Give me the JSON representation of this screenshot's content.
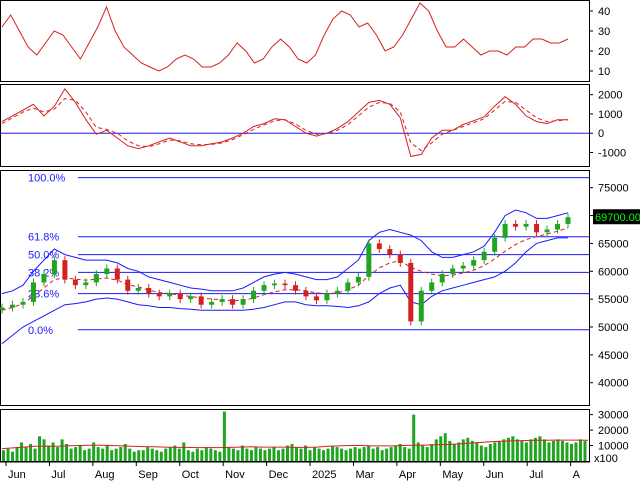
{
  "colors": {
    "background": "#ffffff",
    "panel_border": "#000000",
    "rsi_line": "#d62020",
    "macd_line": "#d62020",
    "macd_signal": "#d62020",
    "zero_line": "#1a1aff",
    "fib_line": "#1a1aff",
    "bollinger": "#1a1aff",
    "ma_line": "#d62020",
    "candle_up": "#1fa51f",
    "candle_down": "#d62020",
    "volume_bar": "#1fa51f",
    "volume_ma": "#d62020",
    "price_tag_bg": "#000000",
    "price_tag_fg": "#00ff00"
  },
  "chart_data": [
    {
      "type": "line",
      "panel": "rsi",
      "y_ticks": [
        "40",
        "30",
        "20",
        "10"
      ],
      "y_values": [
        40,
        30,
        20,
        10
      ],
      "ylim": [
        5,
        45
      ],
      "series": [
        {
          "role": "rsi",
          "values": [
            32,
            38,
            30,
            22,
            18,
            24,
            30,
            28,
            22,
            16,
            24,
            32,
            42,
            30,
            22,
            18,
            14,
            12,
            10,
            12,
            16,
            18,
            16,
            12,
            12,
            14,
            18,
            24,
            20,
            14,
            16,
            22,
            26,
            22,
            16,
            14,
            18,
            28,
            36,
            40,
            38,
            32,
            34,
            28,
            20,
            22,
            28,
            36,
            44,
            40,
            30,
            22,
            22,
            26,
            22,
            18,
            20,
            20,
            18,
            22,
            22,
            26,
            26,
            24,
            24,
            26
          ]
        }
      ]
    },
    {
      "type": "line",
      "panel": "macd",
      "y_ticks": [
        "2000",
        "1000",
        "0",
        "-1000"
      ],
      "y_values": [
        2000,
        1000,
        0,
        -1000
      ],
      "ylim": [
        -1700,
        2500
      ],
      "series": [
        {
          "role": "macd",
          "values": [
            600,
            900,
            1200,
            1500,
            900,
            1400,
            2300,
            1600,
            700,
            -50,
            150,
            -250,
            -650,
            -800,
            -650,
            -450,
            -250,
            -450,
            -650,
            -650,
            -550,
            -450,
            -250,
            0,
            350,
            500,
            750,
            700,
            350,
            0,
            -150,
            0,
            250,
            600,
            1100,
            1600,
            1700,
            1500,
            800,
            -1200,
            -1100,
            -250,
            150,
            150,
            450,
            650,
            850,
            1400,
            1900,
            1500,
            900,
            600,
            500,
            700,
            700
          ]
        },
        {
          "role": "signal",
          "values": [
            500,
            800,
            1100,
            1300,
            1100,
            1250,
            1800,
            1700,
            1100,
            300,
            200,
            0,
            -400,
            -650,
            -700,
            -550,
            -350,
            -400,
            -550,
            -600,
            -580,
            -500,
            -330,
            -80,
            200,
            430,
            650,
            700,
            480,
            150,
            -50,
            -20,
            150,
            450,
            900,
            1350,
            1600,
            1550,
            1100,
            -500,
            -900,
            -500,
            -50,
            150,
            350,
            550,
            750,
            1200,
            1650,
            1600,
            1200,
            800,
            600,
            650,
            700
          ]
        }
      ]
    },
    {
      "type": "line",
      "panel": "price",
      "x_labels": [
        "Jun",
        "Jul",
        "Aug",
        "Sep",
        "Oct",
        "Nov",
        "Dec",
        "2025",
        "Mar",
        "Apr",
        "May",
        "Jun",
        "Jul",
        "A"
      ],
      "y_ticks": [
        "75000",
        "70000",
        "65000",
        "60000",
        "55000",
        "50000",
        "45000",
        "40000"
      ],
      "y_values": [
        75000,
        70000,
        65000,
        60000,
        55000,
        50000,
        45000,
        40000
      ],
      "ylim": [
        36000,
        78000
      ],
      "fib_levels": [
        {
          "label": "100.0%",
          "value": 76800
        },
        {
          "label": "61.8%",
          "value": 66200
        },
        {
          "label": "50.0%",
          "value": 63000
        },
        {
          "label": "38.2%",
          "value": 59800
        },
        {
          "label": "23.6%",
          "value": 56000
        },
        {
          "label": "0.0%",
          "value": 49500
        }
      ],
      "last_price_label": "69700.00",
      "last_price": 69700,
      "series": [
        {
          "role": "close",
          "values": [
            53500,
            54000,
            54500,
            58000,
            59500,
            62000,
            58500,
            57500,
            58000,
            59500,
            60500,
            58500,
            56500,
            57000,
            56000,
            55500,
            56000,
            55000,
            55500,
            54000,
            54500,
            55000,
            54000,
            55000,
            56500,
            57500,
            57800,
            57500,
            56500,
            55500,
            54800,
            56000,
            56500,
            58000,
            59000,
            65000,
            64000,
            63000,
            61500,
            51000,
            56500,
            58000,
            59500,
            60500,
            61000,
            62000,
            63500,
            66000,
            68500,
            68000,
            68500,
            67000,
            67500,
            68500,
            69700
          ]
        },
        {
          "role": "ma",
          "values": [
            53000,
            53500,
            54200,
            55500,
            57000,
            58500,
            58800,
            58600,
            58400,
            58600,
            58800,
            58400,
            57600,
            57200,
            56600,
            56200,
            56000,
            55700,
            55500,
            55200,
            55000,
            54900,
            54700,
            54800,
            55200,
            55800,
            56300,
            56700,
            56700,
            56500,
            56100,
            56000,
            56100,
            56700,
            57500,
            59200,
            60600,
            61500,
            61900,
            60700,
            60000,
            59500,
            59200,
            59300,
            59700,
            60200,
            61000,
            62200,
            63600,
            64800,
            65700,
            66200,
            66700,
            67200,
            67800
          ]
        },
        {
          "role": "bb_upper",
          "values": [
            56000,
            56500,
            57500,
            60000,
            62000,
            64000,
            63000,
            62500,
            62000,
            62000,
            62000,
            61500,
            60500,
            60000,
            59000,
            58500,
            58000,
            57500,
            57000,
            56800,
            56500,
            56500,
            56500,
            57000,
            58000,
            59000,
            59500,
            59800,
            59500,
            59000,
            58500,
            58500,
            59000,
            60500,
            62000,
            65500,
            67000,
            67500,
            67000,
            66500,
            65500,
            63500,
            62500,
            62500,
            63000,
            63500,
            64500,
            67000,
            70000,
            71000,
            70500,
            69500,
            69500,
            70000,
            70500
          ]
        },
        {
          "role": "bb_lower",
          "values": [
            47000,
            48500,
            50000,
            51000,
            52000,
            53000,
            54000,
            54200,
            54500,
            55000,
            55200,
            55000,
            54500,
            54000,
            53800,
            53500,
            53500,
            53300,
            53200,
            53000,
            53000,
            53000,
            53000,
            53000,
            53200,
            53500,
            54000,
            54500,
            54500,
            54000,
            53800,
            53800,
            53700,
            53500,
            53800,
            54500,
            56000,
            57000,
            57500,
            54500,
            54000,
            55500,
            56500,
            57000,
            57500,
            58000,
            58500,
            59000,
            60000,
            61500,
            63500,
            65000,
            65500,
            66000,
            66000
          ]
        }
      ]
    },
    {
      "type": "bar",
      "panel": "volume",
      "y_ticks": [
        "30000",
        "20000",
        "10000"
      ],
      "y_values": [
        30000,
        20000,
        10000
      ],
      "ylim": [
        0,
        33000
      ],
      "unit_label": "x100",
      "series": [
        {
          "role": "volume",
          "values": [
            7000,
            8000,
            6000,
            9000,
            12000,
            9000,
            11000,
            8000,
            16000,
            14000,
            10000,
            12000,
            9000,
            14000,
            11000,
            8000,
            9000,
            10000,
            7000,
            8000,
            12000,
            9000,
            8000,
            10000,
            7000,
            8000,
            9000,
            11000,
            8000,
            6000,
            7000,
            7000,
            9000,
            8000,
            7000,
            6000,
            8000,
            9000,
            10000,
            8000,
            12000,
            7000,
            6000,
            8000,
            7000,
            9000,
            8000,
            7000,
            6000,
            32000,
            9000,
            8000,
            7000,
            10000,
            8000,
            7000,
            9000,
            8000,
            7000,
            8000,
            9000,
            7000,
            8000,
            10000,
            11000,
            9000,
            8000,
            10000,
            7000,
            9000,
            8000,
            7000,
            8000,
            10000,
            9000,
            8000,
            7000,
            8000,
            9000,
            8000,
            9000,
            10000,
            8000,
            9000,
            7000,
            8000,
            9000,
            10000,
            11000,
            9000,
            8000,
            30000,
            12000,
            10000,
            9000,
            11000,
            14000,
            16000,
            18000,
            13000,
            11000,
            12000,
            14000,
            15000,
            13000,
            12000,
            10000,
            9000,
            11000,
            12000,
            13000,
            14000,
            15000,
            16000,
            14000,
            13000,
            12000,
            14000,
            15000,
            16000,
            14000,
            12000,
            13000,
            14000,
            13000,
            12000,
            11000,
            12000,
            14000,
            13000
          ]
        },
        {
          "role": "volume_ma",
          "values": [
            8000,
            8500,
            9000,
            9500,
            9500,
            9500,
            9800,
            10000,
            10200,
            10200,
            10000,
            9800,
            9500,
            9300,
            9200,
            9000,
            8800,
            8800,
            8700,
            8700,
            8700,
            8800,
            9000,
            9200,
            9000,
            9000,
            9000,
            8800,
            8800,
            9000,
            9500,
            9800,
            10000,
            10000,
            9800,
            9800,
            9800,
            10000,
            10200,
            10300,
            10500,
            10700,
            11000,
            11500,
            12000,
            12500,
            12800,
            13000,
            13200,
            13400,
            13400,
            13500,
            13500,
            13500,
            13400
          ]
        }
      ]
    }
  ]
}
